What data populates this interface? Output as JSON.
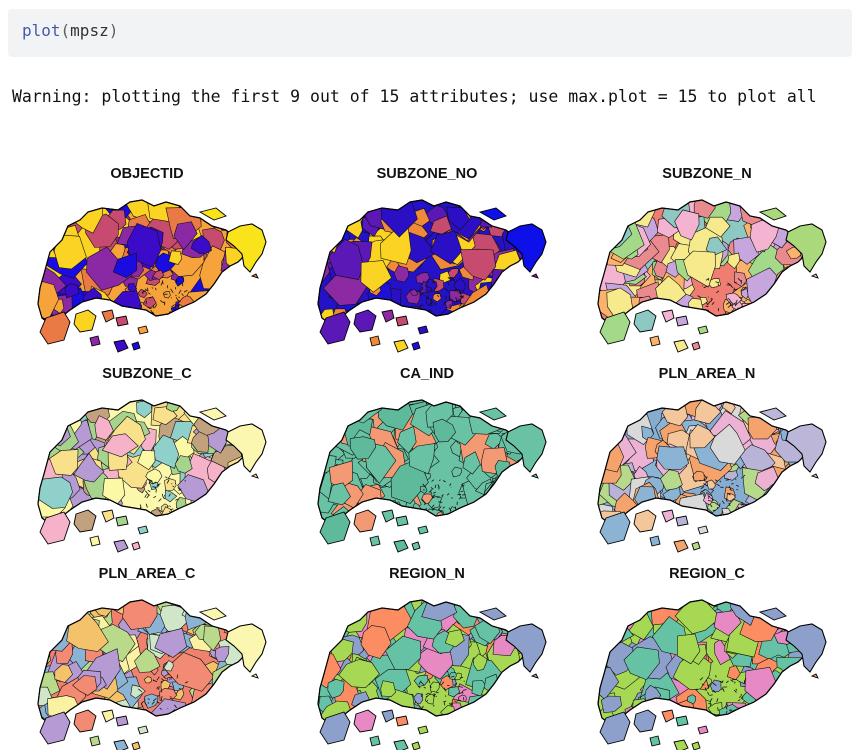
{
  "code": {
    "function": "plot",
    "open_paren": "(",
    "argument": "mpsz",
    "close_paren": ")"
  },
  "warning": {
    "text": "Warning: plotting the first 9 out of 15 attributes; use max.plot = 15 to plot all"
  },
  "panels": [
    {
      "title": "OBJECTID",
      "palette": [
        "#f7a33b",
        "#fbd323",
        "#e97a45",
        "#c64b6e",
        "#8a29a3",
        "#3b0bc9",
        "#1a0ce0"
      ],
      "mainland": "#f7a33b",
      "east": "#f9e41c"
    },
    {
      "title": "SUBZONE_NO",
      "palette": [
        "#1e10d8",
        "#2a0fc4",
        "#5b18b6",
        "#8d2aa3",
        "#c64b6e",
        "#f08a3a",
        "#fbd323"
      ],
      "mainland": "#2312c8",
      "east": "#0d10e8"
    },
    {
      "title": "SUBZONE_N",
      "palette": [
        "#f6ea8c",
        "#e98a8f",
        "#a4d98a",
        "#8dc8c2",
        "#f4b3d1",
        "#c6a6dd",
        "#fbb36b"
      ],
      "mainland": "#f07d72",
      "east": "#a9d97a"
    },
    {
      "title": "SUBZONE_C",
      "palette": [
        "#fbf8a6",
        "#b59ad4",
        "#f5b2c9",
        "#8fd1ca",
        "#c2a17e",
        "#f9e08b",
        "#a6d48d"
      ],
      "mainland": "#fbf7ac",
      "east": "#fbf7b1"
    },
    {
      "title": "CA_IND",
      "palette": [
        "#6ac2a4",
        "#6ac2a4",
        "#5fb99b",
        "#6ac2a4",
        "#6ac2a4",
        "#f39a74",
        "#6ac2a4"
      ],
      "mainland": "#6ac2a4",
      "east": "#6ac2a4"
    },
    {
      "title": "PLN_AREA_N",
      "palette": [
        "#ecb2d4",
        "#b9b3d7",
        "#8bb3d4",
        "#f5a36c",
        "#b7d98b",
        "#d9d9d9",
        "#f4c69b"
      ],
      "mainland": "#86acd1",
      "east": "#bcb6d8"
    },
    {
      "title": "PLN_AREA_C",
      "palette": [
        "#f28a74",
        "#fbf1a3",
        "#b59ad4",
        "#b9d98b",
        "#8bb3d4",
        "#f5c26c",
        "#cfe7c8"
      ],
      "mainland": "#f0816f",
      "east": "#fbf7b1"
    },
    {
      "title": "REGION_N",
      "palette": [
        "#a6d854",
        "#e78ac3",
        "#8da0cb",
        "#fc8d62",
        "#66c2a5",
        "#66c2a5",
        "#a6d854"
      ],
      "mainland": "#a6d854",
      "east": "#8da0cb"
    },
    {
      "title": "REGION_C",
      "palette": [
        "#a6d854",
        "#e78ac3",
        "#8da0cb",
        "#fc8d62",
        "#66c2a5",
        "#66c2a5",
        "#a6d854"
      ],
      "mainland": "#a6d854",
      "east": "#8da0cb"
    }
  ]
}
